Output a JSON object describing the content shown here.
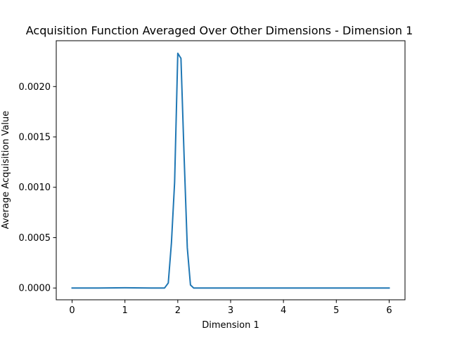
{
  "chart_data": {
    "type": "line",
    "title": "Acquisition Function Averaged Over Other Dimensions - Dimension 1",
    "xlabel": "Dimension 1",
    "ylabel": "Average Acquisition Value",
    "xlim": [
      -0.3,
      6.3
    ],
    "ylim": [
      -0.000117,
      0.002455
    ],
    "x_ticks": [
      0,
      1,
      2,
      3,
      4,
      5,
      6
    ],
    "x_tick_labels": [
      "0",
      "1",
      "2",
      "3",
      "4",
      "5",
      "6"
    ],
    "y_ticks": [
      0,
      0.0005,
      0.001,
      0.0015,
      0.002
    ],
    "y_tick_labels": [
      "0.0000",
      "0.0005",
      "0.0010",
      "0.0015",
      "0.0020"
    ],
    "grid": false,
    "legend": "none",
    "series": [
      {
        "color": "#1f77b4",
        "x": [
          0,
          0.5,
          1.0,
          1.5,
          1.75,
          1.82,
          1.88,
          1.94,
          2.0,
          2.06,
          2.12,
          2.18,
          2.24,
          2.3,
          2.5,
          3.0,
          4.0,
          5.0,
          6.0
        ],
        "y": [
          0,
          0,
          2e-06,
          0,
          0,
          5e-05,
          0.00045,
          0.00105,
          0.00233,
          0.00228,
          0.0013,
          0.0004,
          3e-05,
          0,
          0,
          0,
          0,
          0,
          0
        ]
      }
    ]
  }
}
